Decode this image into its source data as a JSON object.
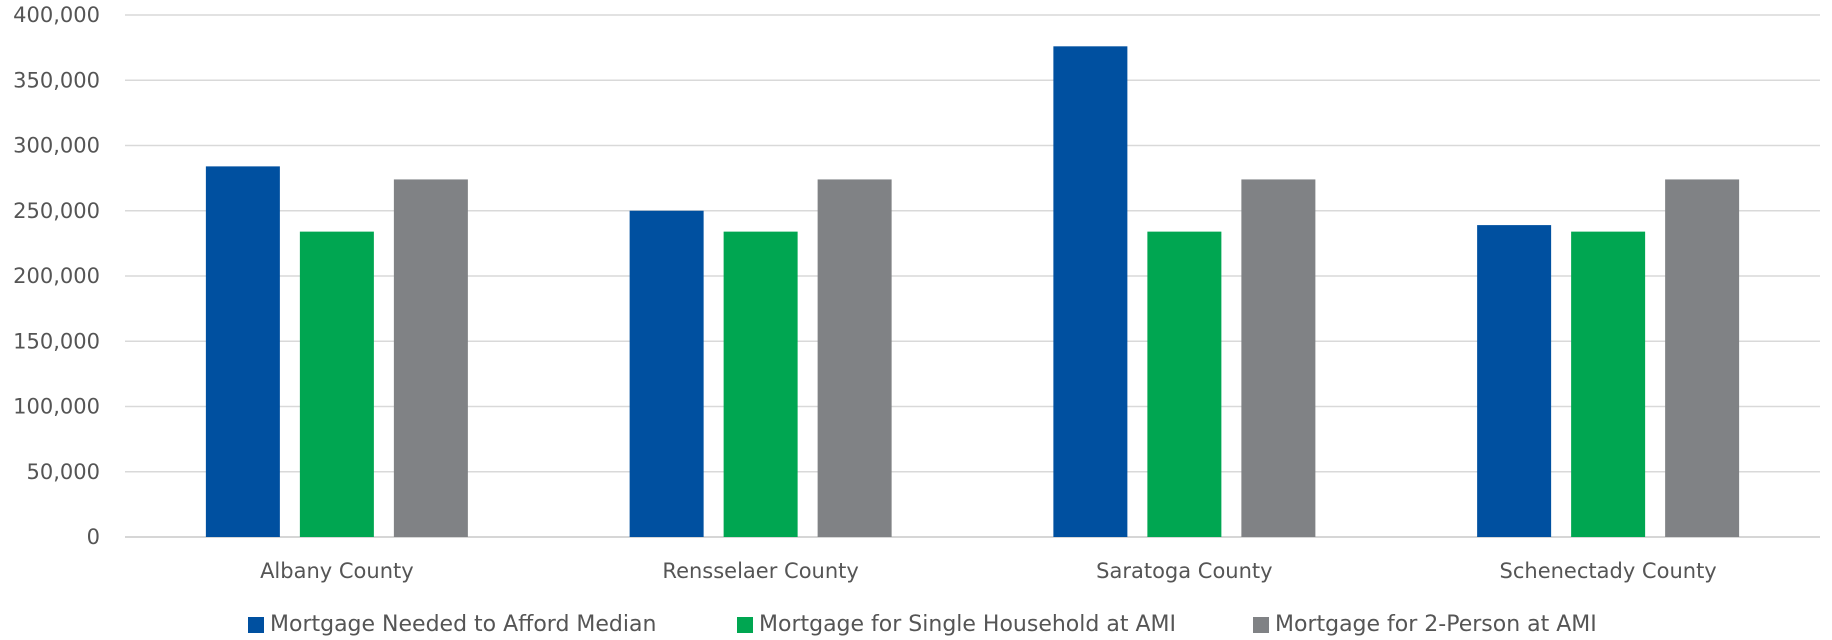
{
  "chart_data": {
    "type": "bar",
    "title": "",
    "xlabel": "",
    "ylabel": "",
    "ylim": [
      0,
      400000
    ],
    "yticks": [
      "0",
      "50,000",
      "100,000",
      "150,000",
      "200,000",
      "250,000",
      "300,000",
      "350,000",
      "400,000"
    ],
    "ytick_values": [
      0,
      50000,
      100000,
      150000,
      200000,
      250000,
      300000,
      350000,
      400000
    ],
    "grid": true,
    "legend_position": "bottom",
    "categories": [
      "Albany County",
      "Rensselaer County",
      "Saratoga County",
      "Schenectady County"
    ],
    "series": [
      {
        "name": "Mortgage Needed to Afford Median",
        "color": "#0050a0",
        "values": [
          284000,
          250000,
          376000,
          239000
        ]
      },
      {
        "name": "Mortgage for Single Household at AMI",
        "color": "#00a651",
        "values": [
          234000,
          234000,
          234000,
          234000
        ]
      },
      {
        "name": "Mortgage for 2-Person at AMI",
        "color": "#808285",
        "values": [
          274000,
          274000,
          274000,
          274000
        ]
      }
    ]
  }
}
